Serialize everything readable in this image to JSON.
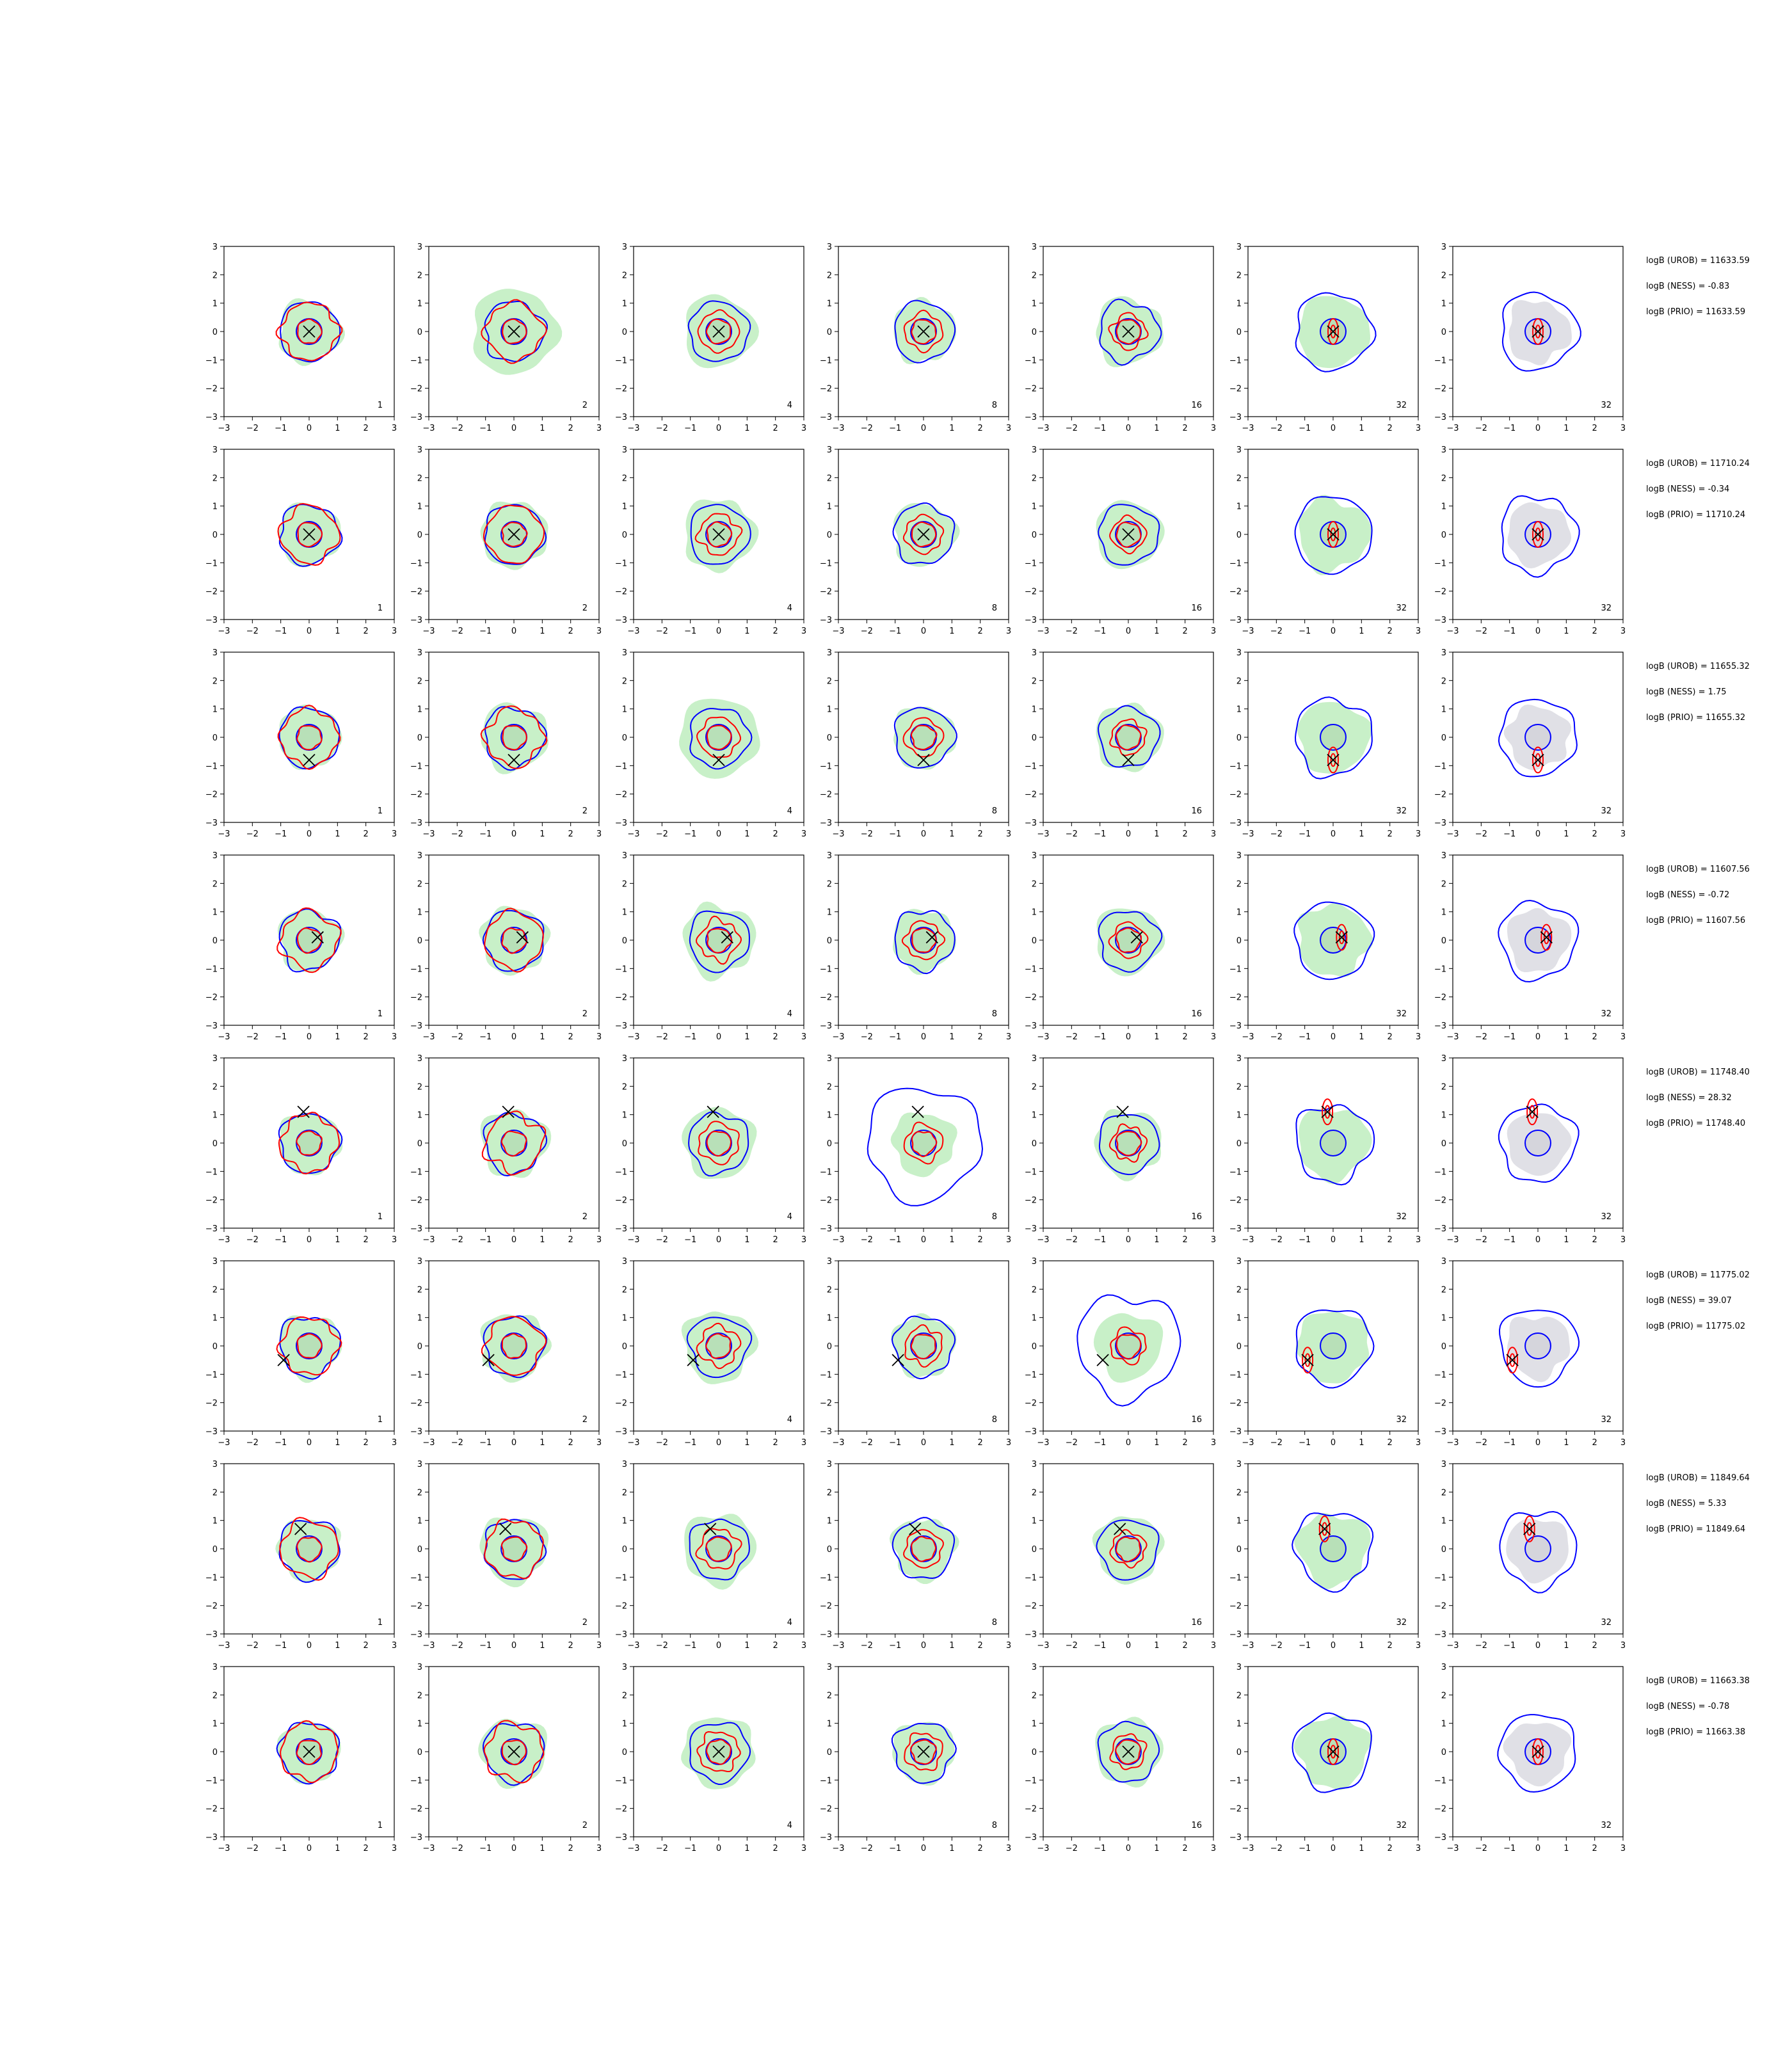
{
  "chart_data": {
    "type": "contour-grid",
    "rows": 8,
    "cols": 7,
    "xlim": [
      -3,
      3
    ],
    "ylim": [
      -3,
      3
    ],
    "ticks": [
      -3,
      -2,
      -1,
      0,
      1,
      2,
      3
    ],
    "grid": false,
    "colors": {
      "fill_green": "#c8f0c8",
      "fill_green_core": "#b4dcb4",
      "fill_grey": "#e0e0e6",
      "contour_blue": "#0000ff",
      "contour_red": "#ff0000",
      "marker": "#000000"
    },
    "panel_labels": [
      "1",
      "2",
      "4",
      "8",
      "16",
      "32",
      "32"
    ],
    "rows_data": [
      {
        "marker": [
          0.0,
          0.0
        ],
        "logB_UROB": "logB (UROB) = 11633.59",
        "logB_NESS": "logB (NESS) = -0.83",
        "logB_PRIO": "logB (PRIO) = 11633.59"
      },
      {
        "marker": [
          0.0,
          0.0
        ],
        "logB_UROB": "logB (UROB) = 11710.24",
        "logB_NESS": "logB (NESS) = -0.34",
        "logB_PRIO": "logB (PRIO) = 11710.24"
      },
      {
        "marker": [
          0.0,
          -0.8
        ],
        "logB_UROB": "logB (UROB) = 11655.32",
        "logB_NESS": "logB (NESS) = 1.75",
        "logB_PRIO": "logB (PRIO) = 11655.32"
      },
      {
        "marker": [
          0.3,
          0.1
        ],
        "logB_UROB": "logB (UROB) = 11607.56",
        "logB_NESS": "logB (NESS) = -0.72",
        "logB_PRIO": "logB (PRIO) = 11607.56"
      },
      {
        "marker": [
          -0.2,
          1.1
        ],
        "logB_UROB": "logB (UROB) = 11748.40",
        "logB_NESS": "logB (NESS) = 28.32",
        "logB_PRIO": "logB (PRIO) = 11748.40"
      },
      {
        "marker": [
          -0.9,
          -0.5
        ],
        "logB_UROB": "logB (UROB) = 11775.02",
        "logB_NESS": "logB (NESS) = 39.07",
        "logB_PRIO": "logB (PRIO) = 11775.02"
      },
      {
        "marker": [
          -0.3,
          0.7
        ],
        "logB_UROB": "logB (UROB) = 11849.64",
        "logB_NESS": "logB (NESS) = 5.33",
        "logB_PRIO": "logB (PRIO) = 11849.64"
      },
      {
        "marker": [
          0.0,
          0.0
        ],
        "logB_UROB": "logB (UROB) = 11663.38",
        "logB_NESS": "logB (NESS) = -0.78",
        "logB_PRIO": "logB (PRIO) = 11663.38"
      }
    ]
  }
}
